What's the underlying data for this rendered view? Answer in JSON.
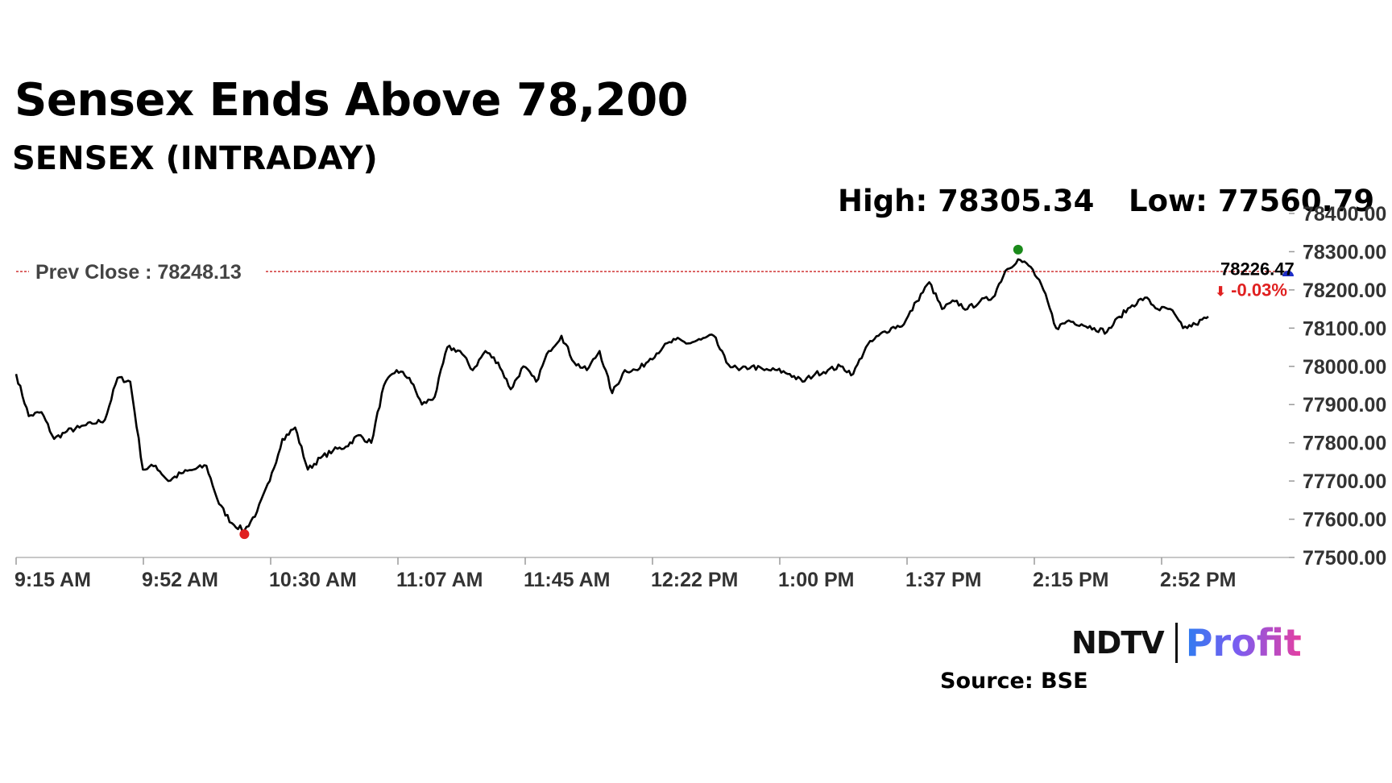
{
  "header": {
    "title": "Sensex Ends Above 78,200",
    "subtitle": "SENSEX (INTRADAY)",
    "high_text": "High: 78305.34",
    "low_text": "Low: 77560.79"
  },
  "footer": {
    "logo_ndtv": "NDTV",
    "logo_profit": "Profit",
    "source": "Source: BSE"
  },
  "chart_data": {
    "type": "line",
    "title": "",
    "xlabel": "",
    "ylabel": "",
    "x_tick_labels": [
      "9:15 AM",
      "9:52 AM",
      "10:30 AM",
      "11:07 AM",
      "11:45 AM",
      "12:22 PM",
      "1:00 PM",
      "1:37 PM",
      "2:15 PM",
      "2:52 PM"
    ],
    "y_tick_labels": [
      "77500.00",
      "77600.00",
      "77700.00",
      "77800.00",
      "77900.00",
      "78000.00",
      "78100.00",
      "78200.00",
      "78300.00",
      "78400.00"
    ],
    "ylim": [
      77500,
      78400
    ],
    "y_axis_side": "right",
    "grid": false,
    "prev_close": 78248.13,
    "prev_close_label": "Prev Close : 78248.13",
    "last_value_label": "78226.47",
    "change_label": "-0.03%",
    "high": 78305.34,
    "low": 77560.79,
    "colors": {
      "line": "#000000",
      "prev_close": "#cc2222",
      "high_marker": "#1a8a1a",
      "low_marker": "#e02020",
      "last_marker": "#1e2ec8",
      "change": "#e02020",
      "axis": "#c8c8c8"
    },
    "series": [
      {
        "x": [
          "9:15 AM",
          "9:19 AM",
          "9:22 AM",
          "9:26 AM",
          "9:30 AM",
          "9:33 AM",
          "9:37 AM",
          "9:40 AM",
          "9:44 AM",
          "9:48 AM",
          "9:51 AM",
          "9:55 AM",
          "9:58 AM",
          "10:02 AM",
          "10:06 AM",
          "10:09 AM",
          "10:13 AM",
          "10:17 AM",
          "10:20 AM",
          "10:24 AM",
          "10:28 AM",
          "10:31 AM",
          "10:35 AM",
          "10:39 AM",
          "10:42 AM",
          "10:46 AM",
          "10:50 AM",
          "10:53 AM",
          "10:57 AM",
          "11:01 AM",
          "11:04 AM",
          "11:08 AM",
          "11:12 AM",
          "11:15 AM",
          "11:19 AM",
          "11:23 AM",
          "11:26 AM",
          "11:30 AM",
          "11:34 AM",
          "11:37 AM",
          "11:41 AM",
          "11:45 AM",
          "11:48 AM",
          "11:52 AM",
          "11:56 AM",
          "11:59 AM",
          "12:03 PM",
          "12:07 PM",
          "12:10 PM",
          "12:14 PM",
          "12:18 PM",
          "12:21 PM",
          "12:25 PM",
          "12:29 PM",
          "12:32 PM",
          "12:36 PM",
          "12:40 PM",
          "12:43 PM",
          "12:47 PM",
          "12:51 PM",
          "12:54 PM",
          "12:58 PM",
          "1:02 PM",
          "1:05 PM",
          "1:09 PM",
          "1:13 PM",
          "1:16 PM",
          "1:20 PM",
          "1:24 PM",
          "1:27 PM",
          "1:31 PM",
          "1:35 PM",
          "1:38 PM",
          "1:42 PM",
          "1:46 PM",
          "1:49 PM",
          "1:53 PM",
          "1:57 PM",
          "2:00 PM",
          "2:04 PM",
          "2:08 PM",
          "2:11 PM",
          "2:15 PM",
          "2:19 PM",
          "2:22 PM",
          "2:26 PM",
          "2:30 PM",
          "2:33 PM",
          "2:37 PM",
          "2:41 PM",
          "2:44 PM",
          "2:48 PM",
          "2:52 PM",
          "2:56 PM",
          "3:00 PM"
        ],
        "values": [
          77980,
          77870,
          77880,
          77810,
          77830,
          77840,
          77850,
          77860,
          77970,
          77960,
          77730,
          77740,
          77700,
          77720,
          77730,
          77740,
          77640,
          77590,
          77570,
          77620,
          77700,
          77810,
          77840,
          77730,
          77760,
          77780,
          77790,
          77820,
          77800,
          77950,
          77990,
          77970,
          77900,
          77920,
          78050,
          78040,
          77990,
          78040,
          78010,
          77940,
          78000,
          77960,
          78040,
          78080,
          78010,
          77990,
          78040,
          77930,
          77990,
          77990,
          78020,
          78050,
          78070,
          78060,
          78070,
          78080,
          78010,
          77990,
          78000,
          77990,
          77990,
          77980,
          77960,
          77980,
          77990,
          78000,
          77980,
          78050,
          78080,
          78100,
          78110,
          78170,
          78220,
          78150,
          78170,
          78150,
          78170,
          78180,
          78250,
          78280,
          78260,
          78200,
          78100,
          78120,
          78110,
          78100,
          78090,
          78130,
          78160,
          78180,
          78150,
          78150,
          78100,
          78110,
          78130
        ]
      }
    ]
  }
}
